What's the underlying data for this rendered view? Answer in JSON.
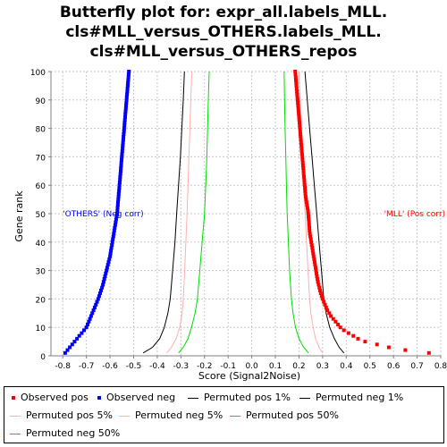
{
  "chart_data": {
    "type": "scatter",
    "title": [
      "Butterfly plot for: expr_all.labels_MLL.",
      "cls#MLL_versus_OTHERS.labels_MLL.",
      "cls#MLL_versus_OTHERS_repos"
    ],
    "xlabel": "Score (Signal2Noise)",
    "ylabel": "Gene rank",
    "xlim": [
      -0.85,
      0.8
    ],
    "ylim": [
      0,
      100
    ],
    "xticks": [
      "-0.8",
      "-0.7",
      "-0.6",
      "-0.5",
      "-0.4",
      "-0.3",
      "-0.2",
      "-0.1",
      "0.0",
      "0.1",
      "0.2",
      "0.3",
      "0.4",
      "0.5",
      "0.6",
      "0.7",
      "0.8"
    ],
    "yticks": [
      "0",
      "10",
      "20",
      "30",
      "40",
      "50",
      "60",
      "70",
      "80",
      "90",
      "100"
    ],
    "grid": true,
    "legend_position": "bottom",
    "annotations": [
      {
        "text": "'OTHERS' (Neg corr)",
        "x": -0.8,
        "y": 50,
        "color": "#0000ff"
      },
      {
        "text": "'MLL' (Pos corr)",
        "x": 0.56,
        "y": 50,
        "color": "#ff0000"
      }
    ],
    "series": [
      {
        "name": "Observed pos",
        "style": "points",
        "color": "#ff0000",
        "points": [
          [
            0.75,
            1
          ],
          [
            0.65,
            2
          ],
          [
            0.58,
            3
          ],
          [
            0.53,
            4
          ],
          [
            0.48,
            5
          ],
          [
            0.45,
            6
          ],
          [
            0.43,
            7
          ],
          [
            0.41,
            8
          ],
          [
            0.39,
            9
          ],
          [
            0.375,
            10
          ],
          [
            0.365,
            11
          ],
          [
            0.355,
            12
          ],
          [
            0.345,
            13
          ],
          [
            0.335,
            14
          ],
          [
            0.328,
            15
          ],
          [
            0.32,
            16
          ],
          [
            0.315,
            17
          ],
          [
            0.31,
            18
          ],
          [
            0.305,
            19
          ],
          [
            0.3,
            20
          ],
          [
            0.296,
            21
          ],
          [
            0.292,
            22
          ],
          [
            0.289,
            23
          ],
          [
            0.286,
            24
          ],
          [
            0.283,
            25
          ],
          [
            0.28,
            26
          ],
          [
            0.278,
            27
          ],
          [
            0.276,
            28
          ],
          [
            0.274,
            29
          ],
          [
            0.272,
            30
          ],
          [
            0.27,
            31
          ],
          [
            0.268,
            32
          ],
          [
            0.266,
            33
          ],
          [
            0.264,
            34
          ],
          [
            0.262,
            35
          ],
          [
            0.26,
            36
          ],
          [
            0.258,
            37
          ],
          [
            0.256,
            38
          ],
          [
            0.254,
            39
          ],
          [
            0.252,
            40
          ],
          [
            0.25,
            41
          ],
          [
            0.248,
            42
          ],
          [
            0.246,
            43
          ],
          [
            0.245,
            44
          ],
          [
            0.244,
            45
          ],
          [
            0.243,
            46
          ],
          [
            0.242,
            47
          ],
          [
            0.241,
            48
          ],
          [
            0.24,
            49
          ],
          [
            0.239,
            50
          ],
          [
            0.238,
            51
          ],
          [
            0.236,
            52
          ],
          [
            0.234,
            53
          ],
          [
            0.232,
            54
          ],
          [
            0.23,
            55
          ],
          [
            0.228,
            56
          ],
          [
            0.227,
            57
          ],
          [
            0.226,
            58
          ],
          [
            0.225,
            59
          ],
          [
            0.224,
            60
          ],
          [
            0.223,
            61
          ],
          [
            0.222,
            62
          ],
          [
            0.221,
            63
          ],
          [
            0.22,
            64
          ],
          [
            0.219,
            65
          ],
          [
            0.218,
            66
          ],
          [
            0.217,
            67
          ],
          [
            0.216,
            68
          ],
          [
            0.215,
            69
          ],
          [
            0.214,
            70
          ],
          [
            0.213,
            71
          ],
          [
            0.212,
            72
          ],
          [
            0.211,
            73
          ],
          [
            0.21,
            74
          ],
          [
            0.209,
            75
          ],
          [
            0.208,
            76
          ],
          [
            0.207,
            77
          ],
          [
            0.206,
            78
          ],
          [
            0.205,
            79
          ],
          [
            0.204,
            80
          ],
          [
            0.203,
            81
          ],
          [
            0.202,
            82
          ],
          [
            0.201,
            83
          ],
          [
            0.2,
            84
          ],
          [
            0.199,
            85
          ],
          [
            0.198,
            86
          ],
          [
            0.197,
            87
          ],
          [
            0.196,
            88
          ],
          [
            0.195,
            89
          ],
          [
            0.194,
            90
          ],
          [
            0.193,
            91
          ],
          [
            0.192,
            92
          ],
          [
            0.191,
            93
          ],
          [
            0.19,
            94
          ],
          [
            0.189,
            95
          ],
          [
            0.188,
            96
          ],
          [
            0.187,
            97
          ],
          [
            0.186,
            98
          ],
          [
            0.185,
            99
          ],
          [
            0.184,
            100
          ]
        ]
      },
      {
        "name": "Observed neg",
        "style": "points",
        "color": "#0000ff",
        "points": [
          [
            -0.79,
            1
          ],
          [
            -0.78,
            2
          ],
          [
            -0.77,
            3
          ],
          [
            -0.76,
            4
          ],
          [
            -0.75,
            5
          ],
          [
            -0.74,
            6
          ],
          [
            -0.73,
            7
          ],
          [
            -0.72,
            8
          ],
          [
            -0.71,
            9
          ],
          [
            -0.7,
            10
          ],
          [
            -0.695,
            11
          ],
          [
            -0.69,
            12
          ],
          [
            -0.685,
            13
          ],
          [
            -0.68,
            14
          ],
          [
            -0.675,
            15
          ],
          [
            -0.67,
            16
          ],
          [
            -0.665,
            17
          ],
          [
            -0.66,
            18
          ],
          [
            -0.655,
            19
          ],
          [
            -0.65,
            20
          ],
          [
            -0.646,
            21
          ],
          [
            -0.642,
            22
          ],
          [
            -0.638,
            23
          ],
          [
            -0.634,
            24
          ],
          [
            -0.63,
            25
          ],
          [
            -0.627,
            26
          ],
          [
            -0.624,
            27
          ],
          [
            -0.621,
            28
          ],
          [
            -0.618,
            29
          ],
          [
            -0.615,
            30
          ],
          [
            -0.612,
            31
          ],
          [
            -0.609,
            32
          ],
          [
            -0.606,
            33
          ],
          [
            -0.603,
            34
          ],
          [
            -0.6,
            35
          ],
          [
            -0.598,
            36
          ],
          [
            -0.596,
            37
          ],
          [
            -0.594,
            38
          ],
          [
            -0.592,
            39
          ],
          [
            -0.59,
            40
          ],
          [
            -0.588,
            41
          ],
          [
            -0.586,
            42
          ],
          [
            -0.584,
            43
          ],
          [
            -0.582,
            44
          ],
          [
            -0.58,
            45
          ],
          [
            -0.578,
            46
          ],
          [
            -0.576,
            47
          ],
          [
            -0.574,
            48
          ],
          [
            -0.572,
            49
          ],
          [
            -0.57,
            50
          ],
          [
            -0.569,
            51
          ],
          [
            -0.568,
            52
          ],
          [
            -0.567,
            53
          ],
          [
            -0.566,
            54
          ],
          [
            -0.565,
            55
          ],
          [
            -0.564,
            56
          ],
          [
            -0.563,
            57
          ],
          [
            -0.562,
            58
          ],
          [
            -0.561,
            59
          ],
          [
            -0.56,
            60
          ],
          [
            -0.559,
            61
          ],
          [
            -0.558,
            62
          ],
          [
            -0.557,
            63
          ],
          [
            -0.556,
            64
          ],
          [
            -0.555,
            65
          ],
          [
            -0.554,
            66
          ],
          [
            -0.553,
            67
          ],
          [
            -0.552,
            68
          ],
          [
            -0.551,
            69
          ],
          [
            -0.55,
            70
          ],
          [
            -0.549,
            71
          ],
          [
            -0.548,
            72
          ],
          [
            -0.547,
            73
          ],
          [
            -0.546,
            74
          ],
          [
            -0.545,
            75
          ],
          [
            -0.544,
            76
          ],
          [
            -0.543,
            77
          ],
          [
            -0.542,
            78
          ],
          [
            -0.541,
            79
          ],
          [
            -0.54,
            80
          ],
          [
            -0.539,
            81
          ],
          [
            -0.538,
            82
          ],
          [
            -0.537,
            83
          ],
          [
            -0.536,
            84
          ],
          [
            -0.535,
            85
          ],
          [
            -0.534,
            86
          ],
          [
            -0.533,
            87
          ],
          [
            -0.532,
            88
          ],
          [
            -0.531,
            89
          ],
          [
            -0.53,
            90
          ],
          [
            -0.529,
            91
          ],
          [
            -0.528,
            92
          ],
          [
            -0.527,
            93
          ],
          [
            -0.526,
            94
          ],
          [
            -0.525,
            95
          ],
          [
            -0.524,
            96
          ],
          [
            -0.523,
            97
          ],
          [
            -0.522,
            98
          ],
          [
            -0.521,
            99
          ],
          [
            -0.52,
            100
          ]
        ]
      },
      {
        "name": "Permuted pos 1%",
        "style": "line",
        "color": "#000000",
        "points": [
          [
            0.39,
            1
          ],
          [
            0.37,
            3
          ],
          [
            0.35,
            6
          ],
          [
            0.33,
            10
          ],
          [
            0.315,
            15
          ],
          [
            0.305,
            20
          ],
          [
            0.295,
            30
          ],
          [
            0.285,
            40
          ],
          [
            0.275,
            50
          ],
          [
            0.265,
            60
          ],
          [
            0.255,
            70
          ],
          [
            0.245,
            80
          ],
          [
            0.235,
            90
          ],
          [
            0.225,
            100
          ]
        ]
      },
      {
        "name": "Permuted neg 1%",
        "style": "line",
        "color": "#000000",
        "points": [
          [
            -0.46,
            1
          ],
          [
            -0.42,
            3
          ],
          [
            -0.39,
            6
          ],
          [
            -0.37,
            10
          ],
          [
            -0.355,
            15
          ],
          [
            -0.345,
            20
          ],
          [
            -0.335,
            30
          ],
          [
            -0.325,
            40
          ],
          [
            -0.318,
            50
          ],
          [
            -0.31,
            60
          ],
          [
            -0.302,
            70
          ],
          [
            -0.296,
            80
          ],
          [
            -0.29,
            90
          ],
          [
            -0.285,
            100
          ]
        ]
      },
      {
        "name": "Permuted pos 5%",
        "style": "line",
        "color": "#ffafaf",
        "points": [
          [
            0.3,
            1
          ],
          [
            0.285,
            3
          ],
          [
            0.27,
            6
          ],
          [
            0.26,
            10
          ],
          [
            0.25,
            15
          ],
          [
            0.245,
            20
          ],
          [
            0.238,
            30
          ],
          [
            0.232,
            40
          ],
          [
            0.226,
            50
          ],
          [
            0.22,
            60
          ],
          [
            0.215,
            70
          ],
          [
            0.21,
            80
          ],
          [
            0.205,
            90
          ],
          [
            0.2,
            100
          ]
        ]
      },
      {
        "name": "Permuted neg 5%",
        "style": "line",
        "color": "#ffafaf",
        "points": [
          [
            -0.36,
            1
          ],
          [
            -0.34,
            3
          ],
          [
            -0.32,
            6
          ],
          [
            -0.305,
            10
          ],
          [
            -0.295,
            15
          ],
          [
            -0.29,
            20
          ],
          [
            -0.284,
            30
          ],
          [
            -0.279,
            40
          ],
          [
            -0.274,
            50
          ],
          [
            -0.27,
            60
          ],
          [
            -0.266,
            70
          ],
          [
            -0.262,
            80
          ],
          [
            -0.258,
            90
          ],
          [
            -0.254,
            100
          ]
        ]
      },
      {
        "name": "Permuted pos 50%",
        "style": "line",
        "color": "#00dd00",
        "points": [
          [
            0.24,
            1
          ],
          [
            0.22,
            3
          ],
          [
            0.2,
            6
          ],
          [
            0.185,
            10
          ],
          [
            0.175,
            15
          ],
          [
            0.168,
            20
          ],
          [
            0.16,
            30
          ],
          [
            0.155,
            40
          ],
          [
            0.15,
            50
          ],
          [
            0.147,
            60
          ],
          [
            0.144,
            70
          ],
          [
            0.141,
            80
          ],
          [
            0.139,
            90
          ],
          [
            0.137,
            100
          ]
        ]
      },
      {
        "name": "Permuted neg 50%",
        "style": "line",
        "color": "#00dd00",
        "points": [
          [
            -0.31,
            1
          ],
          [
            -0.29,
            3
          ],
          [
            -0.27,
            6
          ],
          [
            -0.255,
            10
          ],
          [
            -0.24,
            15
          ],
          [
            -0.23,
            20
          ],
          [
            -0.22,
            30
          ],
          [
            -0.21,
            40
          ],
          [
            -0.2,
            50
          ],
          [
            -0.195,
            60
          ],
          [
            -0.19,
            70
          ],
          [
            -0.187,
            80
          ],
          [
            -0.184,
            90
          ],
          [
            -0.18,
            100
          ]
        ]
      }
    ]
  }
}
